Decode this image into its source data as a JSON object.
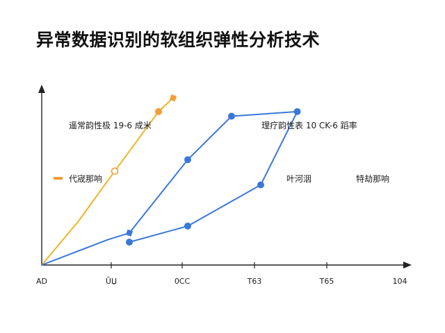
{
  "chart_data": {
    "type": "line",
    "title": "异常数据识别的软组织弹性分析技术",
    "xlabel": "",
    "ylabel": "",
    "x_ticks": [
      "AD",
      "ŪЏ",
      "0CC",
      "T63",
      "T65",
      "104"
    ],
    "annotations": [
      "遥常韵性极 19-6 成米",
      "理疗韵性表 10 CK-6 蹈率",
      "叶河洇",
      "特劫那响"
    ],
    "legend": [
      {
        "name": "代宬那响",
        "color": "#f39c34"
      }
    ],
    "series": [
      {
        "name": "代宬那响",
        "color": "#f0b429",
        "marker_color": "#f39c34",
        "points": [
          [
            0,
            0
          ],
          [
            0.5,
            0.19
          ],
          [
            1.0,
            0.41
          ],
          [
            1.6,
            0.67
          ],
          [
            1.8,
            0.73
          ]
        ],
        "markers": [
          [
            1.0,
            0.41,
            "hollow"
          ],
          [
            1.6,
            0.67,
            "solid"
          ],
          [
            1.8,
            0.73,
            "square"
          ]
        ]
      },
      {
        "name": "",
        "color": "#3a78d8",
        "marker_color": "#3a78d8",
        "points": [
          [
            0,
            0
          ],
          [
            0.9,
            0.11
          ],
          [
            1.2,
            0.14
          ],
          [
            2.0,
            0.46
          ],
          [
            2.6,
            0.65
          ],
          [
            3.5,
            0.67
          ],
          [
            3.0,
            0.35
          ],
          [
            2.0,
            0.17
          ],
          [
            1.2,
            0.1
          ]
        ],
        "markers": [
          [
            1.2,
            0.14,
            "square"
          ],
          [
            2.0,
            0.46,
            "solid"
          ],
          [
            2.6,
            0.65,
            "solid"
          ],
          [
            3.5,
            0.67,
            "solid"
          ],
          [
            3.0,
            0.35,
            "solid"
          ],
          [
            2.0,
            0.17,
            "solid"
          ],
          [
            1.2,
            0.1,
            "solid"
          ]
        ]
      }
    ]
  }
}
